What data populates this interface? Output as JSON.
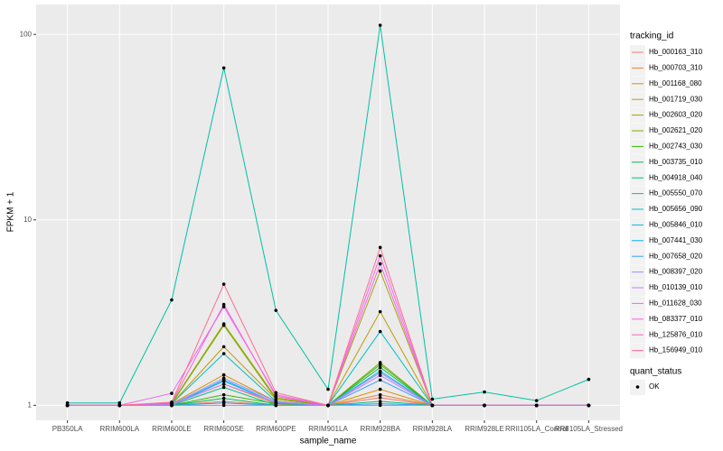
{
  "chart_data": {
    "type": "line",
    "x_label": "sample_name",
    "y_label": "FPKM + 1",
    "log_y": true,
    "grid": true,
    "legend_position": "right",
    "legend_title": "tracking_id",
    "point_color": "#000000",
    "shape_legend": {
      "title": "quant_status",
      "labels": [
        "OK"
      ]
    },
    "categories": [
      "PB350LA",
      "RRIM600LA",
      "RRIM600LE",
      "RRIM600SE",
      "RRIM600PE",
      "RRIM901LA",
      "RRIM928BA",
      "RRIM928LA",
      "RRIM928LE",
      "RRII105LA_Control",
      "RRII105LA_Stressed"
    ],
    "ylim": [
      0.83,
      145
    ],
    "yticks": [
      1,
      10,
      100
    ],
    "series": [
      {
        "name": "Hb_000163_310",
        "color": "#F8766D",
        "values": [
          1,
          1,
          1,
          1.05,
          1,
          1,
          1.1,
          1,
          1,
          1,
          1
        ]
      },
      {
        "name": "Hb_000703_310",
        "color": "#EA8331",
        "values": [
          1,
          1,
          1.01,
          1.3,
          1.02,
          1,
          1.14,
          1,
          1,
          1,
          1
        ]
      },
      {
        "name": "Hb_001168_080",
        "color": "#D89000",
        "values": [
          1,
          1,
          1.02,
          1.46,
          1.05,
          1,
          1.22,
          1,
          1,
          1,
          1
        ]
      },
      {
        "name": "Hb_001719_030",
        "color": "#C09B00",
        "values": [
          1,
          1,
          1.02,
          2.07,
          1.08,
          1,
          3.2,
          1,
          1,
          1,
          1
        ]
      },
      {
        "name": "Hb_002603_020",
        "color": "#A3A500",
        "values": [
          1,
          1,
          1.03,
          2.75,
          1.1,
          1,
          5.3,
          1,
          1,
          1,
          1
        ]
      },
      {
        "name": "Hb_002621_020",
        "color": "#7CAE00",
        "values": [
          1,
          1,
          1.02,
          2.7,
          1.08,
          1,
          1.7,
          1,
          1,
          1,
          1
        ]
      },
      {
        "name": "Hb_002743_030",
        "color": "#39B600",
        "values": [
          1,
          1,
          1,
          1.14,
          1.02,
          1,
          1.66,
          1,
          1,
          1,
          1
        ]
      },
      {
        "name": "Hb_003735_010",
        "color": "#00BB4E",
        "values": [
          1,
          1,
          1,
          1.09,
          1,
          1,
          1.6,
          1,
          1,
          1,
          1
        ]
      },
      {
        "name": "Hb_004918_040",
        "color": "#00BF7D",
        "values": [
          1,
          1,
          1,
          1.25,
          1,
          1,
          1.05,
          1,
          1,
          1,
          1
        ]
      },
      {
        "name": "Hb_005550_070",
        "color": "#00C1A3",
        "values": [
          1.03,
          1.03,
          3.7,
          66,
          3.25,
          1.22,
          112,
          1.08,
          1.18,
          1.06,
          1.38
        ]
      },
      {
        "name": "Hb_005656_090",
        "color": "#00BFC4",
        "values": [
          1,
          1,
          1.02,
          1.9,
          1.05,
          1,
          2.5,
          1,
          1,
          1,
          1
        ]
      },
      {
        "name": "Hb_005846_010",
        "color": "#00BAE0",
        "values": [
          1,
          1,
          1,
          1.37,
          1.03,
          1,
          1.53,
          1,
          1,
          1,
          1
        ]
      },
      {
        "name": "Hb_007441_030",
        "color": "#00B0F6",
        "values": [
          1,
          1,
          1,
          1.03,
          1,
          1,
          1.02,
          1,
          1,
          1,
          1
        ]
      },
      {
        "name": "Hb_007658_020",
        "color": "#35A2FF",
        "values": [
          1,
          1,
          1,
          1.35,
          1.03,
          1,
          1.37,
          1,
          1,
          1,
          1
        ]
      },
      {
        "name": "Hb_008397_020",
        "color": "#9590FF",
        "values": [
          1,
          1,
          1.01,
          1.4,
          1.05,
          1,
          1.5,
          1,
          1,
          1,
          1
        ]
      },
      {
        "name": "Hb_010139_010",
        "color": "#C77CFF",
        "values": [
          1,
          1,
          1.01,
          1.3,
          1.04,
          1,
          1.45,
          1,
          1,
          1,
          1
        ]
      },
      {
        "name": "Hb_011628_030",
        "color": "#E76BF3",
        "values": [
          1,
          1,
          1.16,
          3.4,
          1.14,
          1,
          5.8,
          1,
          1,
          1,
          1
        ]
      },
      {
        "name": "Hb_083377_010",
        "color": "#FA62DB",
        "values": [
          1,
          1,
          1.03,
          3.5,
          1.12,
          1,
          6.4,
          1,
          1,
          1,
          1
        ]
      },
      {
        "name": "Hb_125876_010",
        "color": "#FF62BC",
        "values": [
          1,
          1,
          1,
          1,
          1,
          1,
          1,
          1,
          1,
          1,
          1
        ]
      },
      {
        "name": "Hb_156949_010",
        "color": "#FF6C91",
        "values": [
          1,
          1,
          1.04,
          4.5,
          1.17,
          1,
          7.1,
          1,
          1,
          1,
          1
        ]
      }
    ]
  }
}
